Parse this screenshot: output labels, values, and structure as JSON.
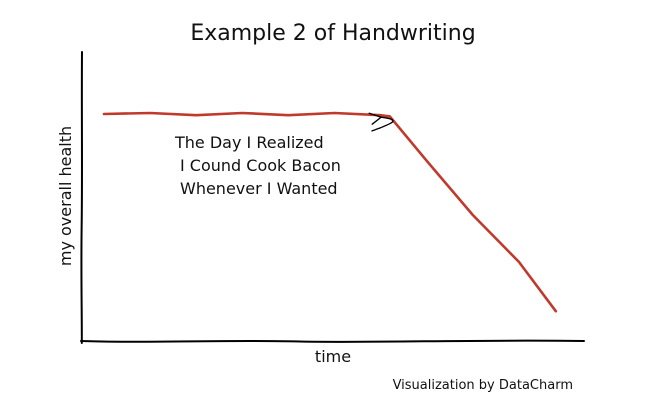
{
  "chart_data": {
    "type": "line",
    "title": "Example 2 of Handwriting",
    "xlabel": "time",
    "ylabel": "my overall health",
    "xlim": [
      0,
      10
    ],
    "ylim": [
      0,
      10
    ],
    "grid": false,
    "series": [
      {
        "color": "#c0392b",
        "x": [
          0,
          1,
          2,
          3,
          4,
          5,
          6,
          6.2,
          7,
          8,
          9,
          9.8
        ],
        "y": [
          8.6,
          8.6,
          8.6,
          8.6,
          8.6,
          8.6,
          8.6,
          8.5,
          6.7,
          4.5,
          2.6,
          0.6
        ]
      }
    ],
    "annotation": {
      "lines": [
        "The Day I Realized",
        "I Cound Cook Bacon",
        "Whenever I Wanted"
      ],
      "point": [
        6.1,
        8.55
      ]
    },
    "credit": "Visualization by DataCharm"
  }
}
